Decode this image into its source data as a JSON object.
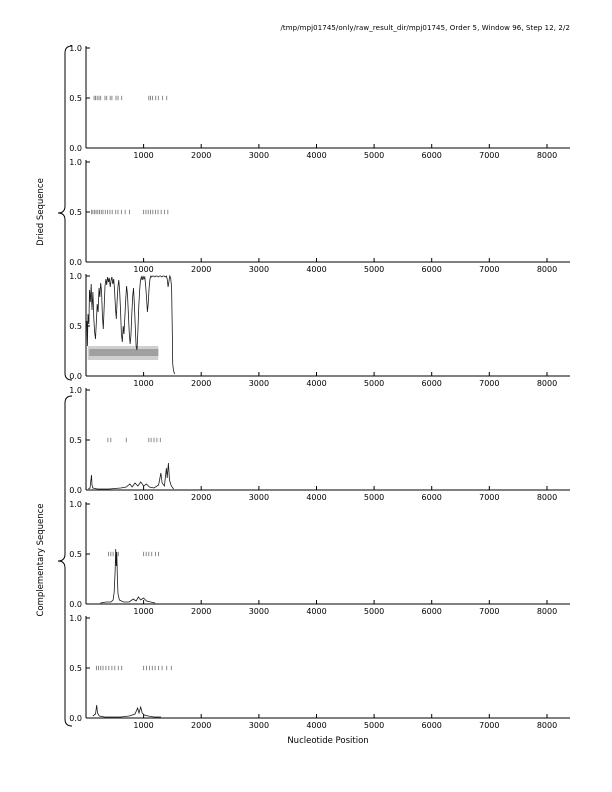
{
  "chart_data": {
    "type": "line",
    "title": "/tmp/mpj01745/only/raw_result_dir/mpj01745, Order 5, Window 96, Step 12, 2/2",
    "xlabel": "Nucleotide Position",
    "group_labels": {
      "top": "Dried Sequence",
      "bottom": "Complementary Sequence"
    },
    "xlim": [
      0,
      8400
    ],
    "ylim": [
      0.0,
      1.0
    ],
    "xticks": [
      1000,
      2000,
      3000,
      4000,
      5000,
      6000,
      7000,
      8000
    ],
    "yticks": [
      "0.0",
      "0.5",
      "1.0"
    ],
    "grid": false,
    "legend": "none",
    "panels": [
      {
        "name": "direct-1",
        "tick_y": 0.5,
        "tick_x": [
          140,
          165,
          195,
          225,
          255,
          330,
          360,
          420,
          450,
          520,
          555,
          620,
          1090,
          1120,
          1155,
          1210,
          1255,
          1330,
          1400
        ],
        "bands": [],
        "line": null
      },
      {
        "name": "direct-2",
        "tick_y": 0.5,
        "tick_x": [
          95,
          120,
          150,
          175,
          205,
          235,
          265,
          295,
          335,
          375,
          415,
          455,
          515,
          555,
          615,
          680,
          755,
          1000,
          1040,
          1080,
          1120,
          1160,
          1205,
          1250,
          1305,
          1360,
          1420
        ],
        "bands": [],
        "line": null
      },
      {
        "name": "direct-3",
        "tick_y": 0.5,
        "tick_x": [],
        "bands": [
          {
            "x0": 30,
            "x1": 1255,
            "y0": 0.16,
            "y1": 0.3,
            "color": "#cfcfcf"
          },
          {
            "x0": 55,
            "x1": 1255,
            "y0": 0.2,
            "y1": 0.27,
            "color": "#a0a0a0"
          }
        ],
        "line": [
          [
            15,
            0.55
          ],
          [
            25,
            0.3
          ],
          [
            35,
            0.62
          ],
          [
            50,
            0.52
          ],
          [
            60,
            0.86
          ],
          [
            75,
            0.74
          ],
          [
            90,
            0.92
          ],
          [
            105,
            0.66
          ],
          [
            120,
            0.84
          ],
          [
            135,
            0.58
          ],
          [
            150,
            0.44
          ],
          [
            165,
            0.37
          ],
          [
            180,
            0.55
          ],
          [
            195,
            0.72
          ],
          [
            210,
            0.64
          ],
          [
            225,
            0.88
          ],
          [
            240,
            0.79
          ],
          [
            255,
            0.93
          ],
          [
            270,
            0.84
          ],
          [
            285,
            0.6
          ],
          [
            300,
            0.47
          ],
          [
            315,
            0.7
          ],
          [
            330,
            0.9
          ],
          [
            345,
            0.97
          ],
          [
            360,
            0.91
          ],
          [
            375,
            0.99
          ],
          [
            390,
            0.94
          ],
          [
            405,
            0.98
          ],
          [
            420,
            0.89
          ],
          [
            435,
            0.96
          ],
          [
            450,
            0.99
          ],
          [
            465,
            0.92
          ],
          [
            480,
            0.97
          ],
          [
            495,
            0.87
          ],
          [
            510,
            0.69
          ],
          [
            525,
            0.57
          ],
          [
            540,
            0.75
          ],
          [
            555,
            0.9
          ],
          [
            570,
            0.96
          ],
          [
            585,
            0.84
          ],
          [
            600,
            0.64
          ],
          [
            615,
            0.42
          ],
          [
            630,
            0.34
          ],
          [
            645,
            0.5
          ],
          [
            660,
            0.42
          ],
          [
            675,
            0.6
          ],
          [
            690,
            0.78
          ],
          [
            705,
            0.9
          ],
          [
            720,
            0.81
          ],
          [
            735,
            0.64
          ],
          [
            750,
            0.44
          ],
          [
            765,
            0.32
          ],
          [
            780,
            0.4
          ],
          [
            795,
            0.62
          ],
          [
            810,
            0.8
          ],
          [
            825,
            0.88
          ],
          [
            840,
            0.71
          ],
          [
            855,
            0.49
          ],
          [
            870,
            0.3
          ],
          [
            885,
            0.26
          ],
          [
            900,
            0.45
          ],
          [
            915,
            0.68
          ],
          [
            930,
            0.85
          ],
          [
            945,
            0.95
          ],
          [
            960,
            0.99
          ],
          [
            975,
            0.96
          ],
          [
            990,
            1.0
          ],
          [
            1005,
            0.97
          ],
          [
            1020,
            0.99
          ],
          [
            1035,
            0.91
          ],
          [
            1050,
            0.79
          ],
          [
            1065,
            0.64
          ],
          [
            1080,
            0.72
          ],
          [
            1095,
            0.88
          ],
          [
            1110,
            0.97
          ],
          [
            1125,
            1.0
          ],
          [
            1140,
            0.99
          ],
          [
            1155,
            1.0
          ],
          [
            1175,
            1.0
          ],
          [
            1195,
            0.99
          ],
          [
            1215,
            1.0
          ],
          [
            1235,
            1.0
          ],
          [
            1255,
            0.99
          ],
          [
            1275,
            1.0
          ],
          [
            1295,
            1.0
          ],
          [
            1315,
            0.99
          ],
          [
            1335,
            1.0
          ],
          [
            1355,
            1.0
          ],
          [
            1375,
            0.99
          ],
          [
            1395,
            1.0
          ],
          [
            1410,
            0.97
          ],
          [
            1425,
            0.89
          ],
          [
            1440,
            0.95
          ],
          [
            1455,
            1.0
          ],
          [
            1470,
            0.98
          ],
          [
            1485,
            0.88
          ],
          [
            1497,
            0.45
          ],
          [
            1505,
            0.12
          ],
          [
            1520,
            0.05
          ],
          [
            1540,
            0.02
          ]
        ]
      },
      {
        "name": "complementary-1",
        "tick_y": 0.5,
        "tick_x": [
          380,
          430,
          700,
          1090,
          1130,
          1180,
          1230,
          1290
        ],
        "bands": [],
        "line": [
          [
            40,
            0.01
          ],
          [
            70,
            0.02
          ],
          [
            95,
            0.15
          ],
          [
            105,
            0.05
          ],
          [
            120,
            0.02
          ],
          [
            200,
            0.01
          ],
          [
            400,
            0.01
          ],
          [
            600,
            0.02
          ],
          [
            700,
            0.03
          ],
          [
            760,
            0.06
          ],
          [
            800,
            0.03
          ],
          [
            850,
            0.07
          ],
          [
            900,
            0.04
          ],
          [
            950,
            0.08
          ],
          [
            1000,
            0.04
          ],
          [
            1050,
            0.06
          ],
          [
            1100,
            0.03
          ],
          [
            1180,
            0.02
          ],
          [
            1260,
            0.05
          ],
          [
            1300,
            0.17
          ],
          [
            1320,
            0.07
          ],
          [
            1360,
            0.04
          ],
          [
            1395,
            0.22
          ],
          [
            1410,
            0.12
          ],
          [
            1430,
            0.27
          ],
          [
            1450,
            0.1
          ],
          [
            1480,
            0.04
          ],
          [
            1520,
            0.01
          ]
        ]
      },
      {
        "name": "complementary-2",
        "tick_y": 0.5,
        "tick_x": [
          390,
          430,
          470,
          520,
          560,
          1000,
          1045,
          1090,
          1140,
          1205,
          1260
        ],
        "bands": [],
        "line": [
          [
            250,
            0.01
          ],
          [
            350,
            0.02
          ],
          [
            430,
            0.02
          ],
          [
            470,
            0.04
          ],
          [
            490,
            0.12
          ],
          [
            505,
            0.32
          ],
          [
            515,
            0.55
          ],
          [
            525,
            0.38
          ],
          [
            535,
            0.52
          ],
          [
            545,
            0.25
          ],
          [
            555,
            0.1
          ],
          [
            580,
            0.04
          ],
          [
            650,
            0.02
          ],
          [
            750,
            0.02
          ],
          [
            820,
            0.05
          ],
          [
            870,
            0.03
          ],
          [
            910,
            0.07
          ],
          [
            950,
            0.04
          ],
          [
            1000,
            0.06
          ],
          [
            1050,
            0.03
          ],
          [
            1120,
            0.02
          ],
          [
            1200,
            0.01
          ]
        ]
      },
      {
        "name": "complementary-3",
        "tick_y": 0.5,
        "tick_x": [
          180,
          215,
          255,
          295,
          345,
          395,
          450,
          500,
          560,
          620,
          1000,
          1050,
          1100,
          1150,
          1200,
          1260,
          1320,
          1400,
          1480
        ],
        "bands": [],
        "line": [
          [
            120,
            0.02
          ],
          [
            165,
            0.04
          ],
          [
            185,
            0.13
          ],
          [
            200,
            0.05
          ],
          [
            230,
            0.02
          ],
          [
            320,
            0.01
          ],
          [
            450,
            0.01
          ],
          [
            600,
            0.01
          ],
          [
            750,
            0.02
          ],
          [
            850,
            0.04
          ],
          [
            895,
            0.1
          ],
          [
            920,
            0.05
          ],
          [
            950,
            0.11
          ],
          [
            975,
            0.05
          ],
          [
            1010,
            0.03
          ],
          [
            1080,
            0.02
          ],
          [
            1180,
            0.01
          ],
          [
            1300,
            0.01
          ]
        ]
      }
    ]
  },
  "colors": {
    "axis": "#000000",
    "line": "#1a1a1a",
    "tick_dash": "#7d7d7d",
    "band_light": "#cfcfcf",
    "band_dark": "#a0a0a0"
  }
}
